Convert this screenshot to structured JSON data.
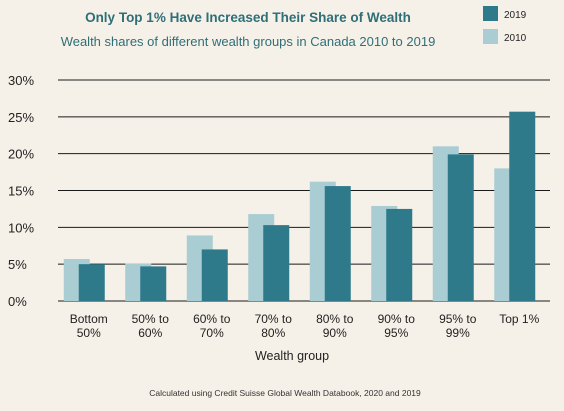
{
  "chart_data": {
    "type": "bar",
    "title": "Only Top 1% Have Increased Their Share of Wealth",
    "subtitle": "Wealth shares of different wealth groups in Canada 2010 to 2019",
    "xlabel": "Wealth group",
    "ylabel": "",
    "ylim": [
      0,
      30
    ],
    "yticks": [
      0,
      5,
      10,
      15,
      20,
      25,
      30
    ],
    "ytick_labels": [
      "0%",
      "5%",
      "10%",
      "15%",
      "20%",
      "25%",
      "30%"
    ],
    "categories": [
      [
        "Bottom",
        "50%"
      ],
      [
        "50% to",
        "60%"
      ],
      [
        "60% to",
        "70%"
      ],
      [
        "70% to",
        "80%"
      ],
      [
        "80% to",
        "90%"
      ],
      [
        "90% to",
        "95%"
      ],
      [
        "95% to",
        "99%"
      ],
      [
        "Top 1%"
      ]
    ],
    "series": [
      {
        "name": "2010",
        "color": "#a9cdd3",
        "values": [
          5.7,
          5.1,
          8.9,
          11.8,
          16.2,
          12.9,
          21.0,
          18.0
        ]
      },
      {
        "name": "2019",
        "color": "#2e7a8a",
        "values": [
          5.0,
          4.7,
          7.0,
          10.3,
          15.6,
          12.5,
          19.9,
          25.7
        ]
      }
    ],
    "legend": [
      {
        "name": "2019",
        "color": "#2e7a8a"
      },
      {
        "name": "2010",
        "color": "#a9cdd3"
      }
    ],
    "legend_position": "top-right",
    "grid": true,
    "caption": "Calculated using Credit Suisse Global Wealth Databook, 2020 and 2019"
  },
  "colors": {
    "title": "#2e6f78",
    "subtitle": "#2e6f78",
    "background": "#f6f1e8",
    "grid": "#1a1a1a"
  }
}
